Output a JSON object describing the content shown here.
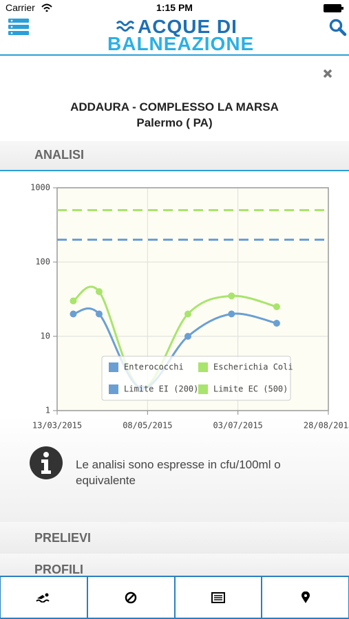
{
  "status_bar": {
    "carrier": "Carrier",
    "time": "1:15 PM"
  },
  "header": {
    "logo_line1": "ACQUE DI",
    "logo_line2": "BALNEAZIONE"
  },
  "location": {
    "name": "ADDAURA - COMPLESSO LA MARSA",
    "city": "Palermo ( PA)"
  },
  "sections": {
    "analisi": "ANALISI",
    "prelievi": "PRELIEVI",
    "profili": "PROFILI"
  },
  "chart_data": {
    "type": "line",
    "x": [
      "23/03/2015",
      "08/04/2015",
      "04/05/2015",
      "02/06/2015",
      "29/06/2015",
      "27/07/2015"
    ],
    "series": [
      {
        "name": "Enterococchi",
        "color": "#6a9fd4",
        "values": [
          20,
          20,
          2,
          10,
          20,
          15
        ]
      },
      {
        "name": "Escherichia Coli",
        "color": "#a9e46c",
        "values": [
          30,
          40,
          2,
          20,
          35,
          25
        ]
      }
    ],
    "limits": [
      {
        "name": "Limite EI (200)",
        "color": "#6a9fd4",
        "value": 200
      },
      {
        "name": "Limite EC (500)",
        "color": "#a9e46c",
        "value": 500
      }
    ],
    "xlim": [
      "13/03/2015",
      "28/08/2015"
    ],
    "xticks": [
      "13/03/2015",
      "08/05/2015",
      "03/07/2015",
      "28/08/2015"
    ],
    "ylim": [
      1,
      1000
    ],
    "yticks": [
      1,
      10,
      100,
      1000
    ],
    "log_y": true,
    "grid": true
  },
  "note": {
    "text": "Le analisi sono espresse in cfu/100ml o equivalente"
  }
}
